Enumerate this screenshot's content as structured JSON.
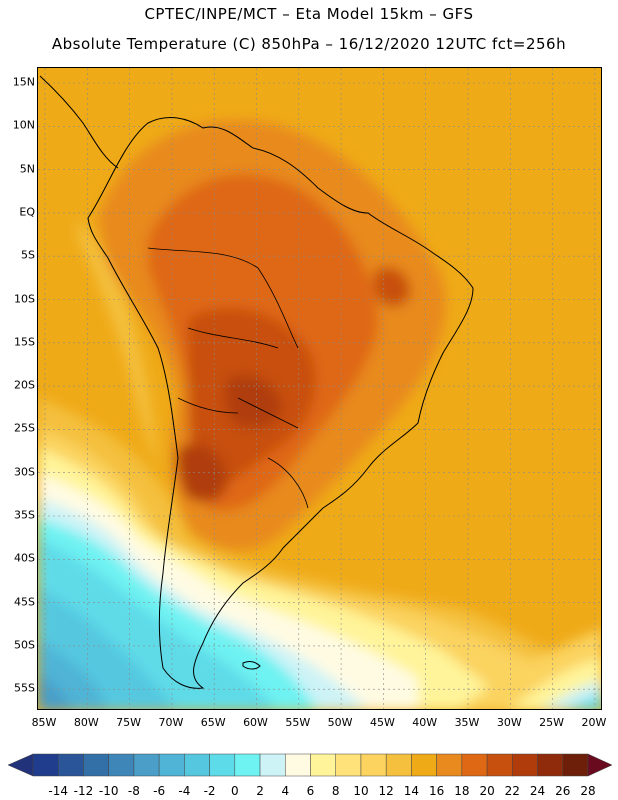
{
  "header": {
    "line1": "CPTEC/INPE/MCT –  Eta Model 15km – GFS",
    "line2": "Absolute Temperature (C) 850hPa – 16/12/2020 12UTC fct=256h"
  },
  "map": {
    "lat_labels": [
      "15N",
      "10N",
      "5N",
      "EQ",
      "5S",
      "10S",
      "15S",
      "20S",
      "25S",
      "30S",
      "35S",
      "40S",
      "45S",
      "50S",
      "55S"
    ],
    "lon_labels": [
      "85W",
      "80W",
      "75W",
      "70W",
      "65W",
      "60W",
      "55W",
      "50W",
      "45W",
      "40W",
      "35W",
      "30W",
      "25W",
      "20W"
    ]
  },
  "colorbar": {
    "labels": [
      "-14",
      "-12",
      "-10",
      "-8",
      "-6",
      "-4",
      "-2",
      "0",
      "2",
      "4",
      "6",
      "8",
      "10",
      "12",
      "14",
      "16",
      "18",
      "20",
      "22",
      "24",
      "26",
      "28"
    ],
    "colors": [
      "#1f3d8c",
      "#2a5599",
      "#3470a8",
      "#3f86b8",
      "#4a9ec8",
      "#4fb4d6",
      "#55c8e0",
      "#5edbe8",
      "#6ef2f2",
      "#cdf3f7",
      "#fffbe3",
      "#fff49a",
      "#ffe27a",
      "#fbd35e",
      "#f4c03e",
      "#efaa18",
      "#e88a1e",
      "#df6814",
      "#c8500e",
      "#b03c0c",
      "#8f2b0a",
      "#6d1f0a"
    ],
    "low_cap": "#21317a",
    "high_cap": "#6a0a1e"
  }
}
